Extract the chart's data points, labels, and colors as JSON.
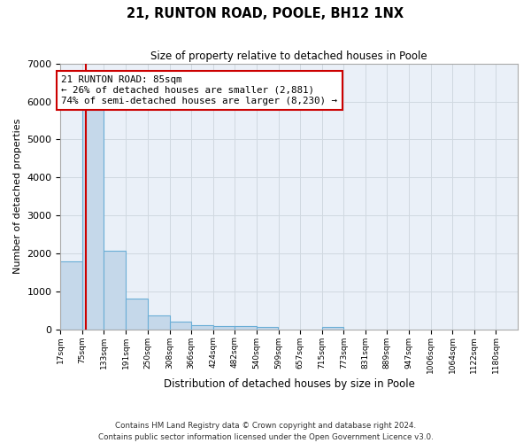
{
  "title": "21, RUNTON ROAD, POOLE, BH12 1NX",
  "subtitle": "Size of property relative to detached houses in Poole",
  "xlabel": "Distribution of detached houses by size in Poole",
  "ylabel": "Number of detached properties",
  "bin_labels": [
    "17sqm",
    "75sqm",
    "133sqm",
    "191sqm",
    "250sqm",
    "308sqm",
    "366sqm",
    "424sqm",
    "482sqm",
    "540sqm",
    "599sqm",
    "657sqm",
    "715sqm",
    "773sqm",
    "831sqm",
    "889sqm",
    "947sqm",
    "1006sqm",
    "1064sqm",
    "1122sqm",
    "1180sqm"
  ],
  "bin_edges": [
    17,
    75,
    133,
    191,
    250,
    308,
    366,
    424,
    482,
    540,
    599,
    657,
    715,
    773,
    831,
    889,
    947,
    1006,
    1064,
    1122,
    1180
  ],
  "bar_heights": [
    1780,
    5780,
    2060,
    820,
    360,
    200,
    110,
    95,
    90,
    70,
    0,
    0,
    70,
    0,
    0,
    0,
    0,
    0,
    0,
    0,
    0
  ],
  "bar_color": "#c5d8ea",
  "bar_edge_color": "#6aaed6",
  "property_size": 85,
  "vline_color": "#cc0000",
  "annotation_text": "21 RUNTON ROAD: 85sqm\n← 26% of detached houses are smaller (2,881)\n74% of semi-detached houses are larger (8,230) →",
  "annotation_box_color": "white",
  "annotation_box_edge_color": "#cc0000",
  "ylim": [
    0,
    7000
  ],
  "yticks": [
    0,
    1000,
    2000,
    3000,
    4000,
    5000,
    6000,
    7000
  ],
  "grid_color": "#d0d8e0",
  "bg_color": "#eaf0f8",
  "footer_line1": "Contains HM Land Registry data © Crown copyright and database right 2024.",
  "footer_line2": "Contains public sector information licensed under the Open Government Licence v3.0."
}
